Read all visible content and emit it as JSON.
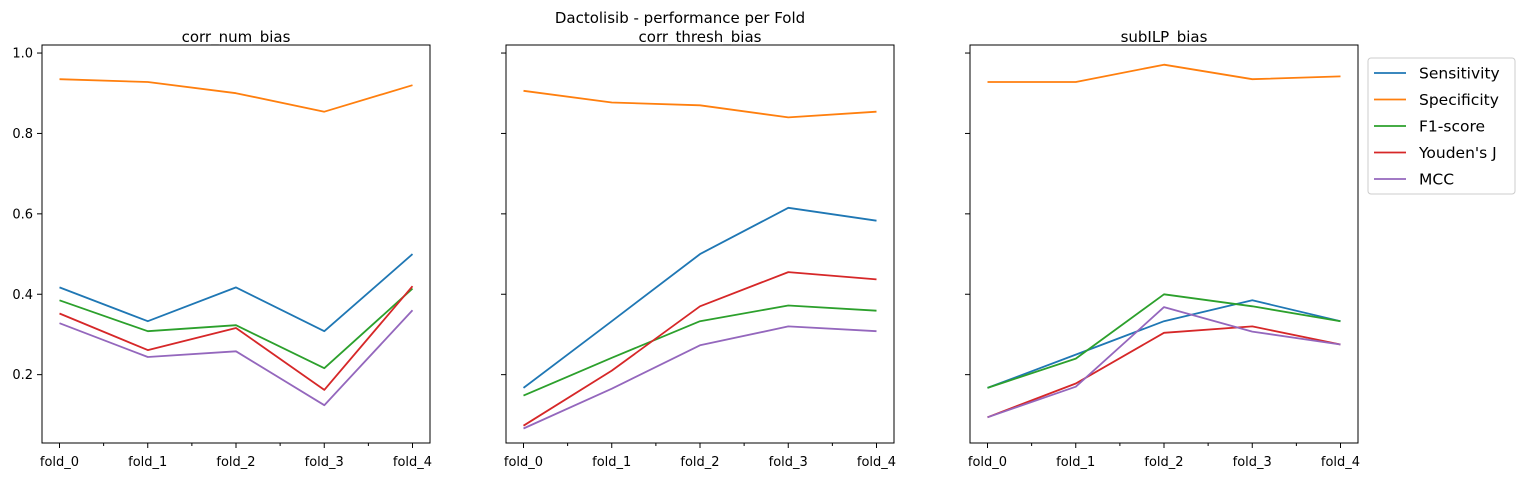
{
  "suptitle": "Dactolisib - performance per Fold",
  "legend": {
    "placement": "upper-right-outside",
    "entries": [
      {
        "label": "Sensitivity",
        "color": "#1f77b4"
      },
      {
        "label": "Specificity",
        "color": "#ff7f0e"
      },
      {
        "label": "F1-score",
        "color": "#2ca02c"
      },
      {
        "label": "Youden's J",
        "color": "#d62728"
      },
      {
        "label": "MCC",
        "color": "#9467bd"
      }
    ]
  },
  "chart_data": [
    {
      "type": "line",
      "title": "corr_num_bias",
      "categories": [
        "fold_0",
        "fold_1",
        "fold_2",
        "fold_3",
        "fold_4"
      ],
      "ylim": [
        0.03,
        1.02
      ],
      "yticks": [
        "0.2",
        "0.4",
        "0.6",
        "0.8",
        "1.0"
      ],
      "grid": false,
      "series": [
        {
          "name": "Sensitivity",
          "color": "#1f77b4",
          "values": [
            0.417,
            0.333,
            0.417,
            0.308,
            0.5
          ]
        },
        {
          "name": "Specificity",
          "color": "#ff7f0e",
          "values": [
            0.935,
            0.928,
            0.9,
            0.854,
            0.92
          ]
        },
        {
          "name": "F1-score",
          "color": "#2ca02c",
          "values": [
            0.385,
            0.308,
            0.323,
            0.216,
            0.414
          ]
        },
        {
          "name": "Youden's J",
          "color": "#d62728",
          "values": [
            0.352,
            0.261,
            0.316,
            0.162,
            0.42
          ]
        },
        {
          "name": "MCC",
          "color": "#9467bd",
          "values": [
            0.328,
            0.244,
            0.258,
            0.124,
            0.36
          ]
        }
      ]
    },
    {
      "type": "line",
      "title": "corr_thresh_bias",
      "categories": [
        "fold_0",
        "fold_1",
        "fold_2",
        "fold_3",
        "fold_4"
      ],
      "ylim": [
        0.03,
        1.02
      ],
      "yticks": [
        "0.2",
        "0.4",
        "0.6",
        "0.8",
        "1.0"
      ],
      "grid": false,
      "series": [
        {
          "name": "Sensitivity",
          "color": "#1f77b4",
          "values": [
            0.167,
            0.333,
            0.5,
            0.615,
            0.583
          ]
        },
        {
          "name": "Specificity",
          "color": "#ff7f0e",
          "values": [
            0.906,
            0.877,
            0.87,
            0.84,
            0.854
          ]
        },
        {
          "name": "F1-score",
          "color": "#2ca02c",
          "values": [
            0.148,
            0.242,
            0.333,
            0.372,
            0.359
          ]
        },
        {
          "name": "Youden's J",
          "color": "#d62728",
          "values": [
            0.073,
            0.21,
            0.37,
            0.455,
            0.437
          ]
        },
        {
          "name": "MCC",
          "color": "#9467bd",
          "values": [
            0.066,
            0.165,
            0.273,
            0.32,
            0.308
          ]
        }
      ]
    },
    {
      "type": "line",
      "title": "subILP_bias",
      "categories": [
        "fold_0",
        "fold_1",
        "fold_2",
        "fold_3",
        "fold_4"
      ],
      "ylim": [
        0.03,
        1.02
      ],
      "yticks": [
        "0.2",
        "0.4",
        "0.6",
        "0.8",
        "1.0"
      ],
      "grid": false,
      "series": [
        {
          "name": "Sensitivity",
          "color": "#1f77b4",
          "values": [
            0.167,
            0.25,
            0.333,
            0.385,
            0.333
          ]
        },
        {
          "name": "Specificity",
          "color": "#ff7f0e",
          "values": [
            0.928,
            0.928,
            0.971,
            0.935,
            0.942
          ]
        },
        {
          "name": "F1-score",
          "color": "#2ca02c",
          "values": [
            0.167,
            0.24,
            0.4,
            0.37,
            0.333
          ]
        },
        {
          "name": "Youden's J",
          "color": "#d62728",
          "values": [
            0.094,
            0.178,
            0.304,
            0.32,
            0.275
          ]
        },
        {
          "name": "MCC",
          "color": "#9467bd",
          "values": [
            0.094,
            0.17,
            0.368,
            0.307,
            0.275
          ]
        }
      ]
    }
  ]
}
